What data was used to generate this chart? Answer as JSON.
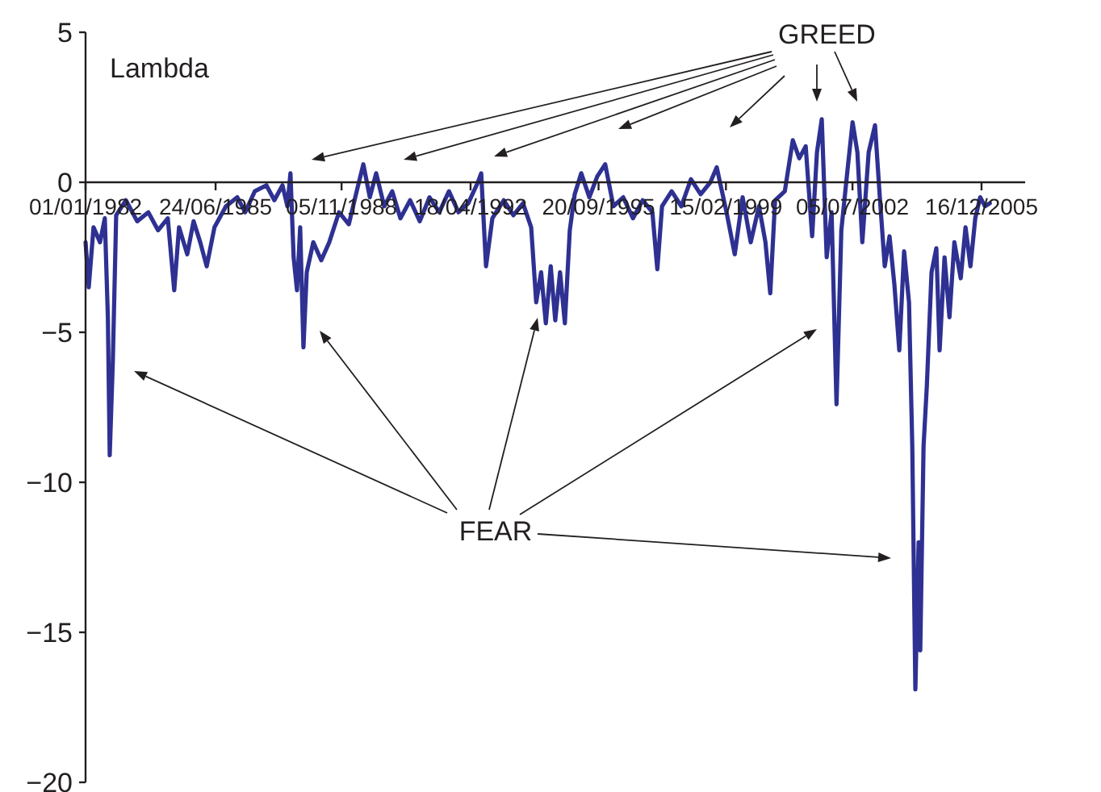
{
  "chart_data": {
    "type": "line",
    "ylabel": "Lambda",
    "annotations": [
      "GREED",
      "FEAR"
    ],
    "color": "#2e3192",
    "grid": false,
    "marker": "none",
    "line_style": "solid",
    "xlim": [
      "1982-01-01",
      "2007-02-15"
    ],
    "xticks": [
      {
        "value": "1982-01-01",
        "label": "01/01/1982"
      },
      {
        "value": "1985-06-24",
        "label": "24/06/1985"
      },
      {
        "value": "1988-11-05",
        "label": "05/11/1988"
      },
      {
        "value": "1992-04-18",
        "label": "18/04/1992"
      },
      {
        "value": "1995-09-20",
        "label": "20/09/1995"
      },
      {
        "value": "1999-02-15",
        "label": "15/02/1999"
      },
      {
        "value": "2002-07-05",
        "label": "05/07/2002"
      },
      {
        "value": "2005-12-16",
        "label": "16/12/2005"
      }
    ],
    "ylim": [
      -20,
      5
    ],
    "yticks": [
      5,
      0,
      -5,
      -10,
      -15,
      -20
    ],
    "x": [
      "1982-01-01",
      "1982-02-01",
      "1982-03-20",
      "1982-05-22",
      "1982-07-08",
      "1982-08-07",
      "1982-08-25",
      "1982-09-24",
      "1982-10-27",
      "1983-01-30",
      "1983-05-20",
      "1983-09-06",
      "1983-12-10",
      "1984-03-14",
      "1984-05-16",
      "1984-07-02",
      "1984-09-20",
      "1984-11-21",
      "1985-01-25",
      "1985-03-29",
      "1985-06-13",
      "1985-10-03",
      "1986-01-22",
      "1986-04-09",
      "1986-07-12",
      "1986-11-02",
      "1987-01-19",
      "1987-04-08",
      "1987-05-26",
      "1987-06-25",
      "1987-07-26",
      "1987-08-28",
      "1987-09-28",
      "1987-10-30",
      "1987-12-01",
      "1988-02-03",
      "1988-04-21",
      "1988-07-08",
      "1988-10-11",
      "1989-01-15",
      "1989-04-02",
      "1989-06-06",
      "1989-08-08",
      "1989-10-09",
      "1989-12-27",
      "1990-03-15",
      "1990-06-03",
      "1990-09-06",
      "1990-12-09",
      "1991-03-14",
      "1991-06-17",
      "1991-09-20",
      "1991-12-22",
      "1992-03-26",
      "1992-06-29",
      "1992-07-31",
      "1992-09-16",
      "1992-11-17",
      "1993-03-08",
      "1993-06-10",
      "1993-09-12",
      "1993-12-01",
      "1994-01-19",
      "1994-03-08",
      "1994-04-23",
      "1994-06-10",
      "1994-07-24",
      "1994-09-09",
      "1994-10-26",
      "1994-12-13",
      "1995-01-30",
      "1995-04-04",
      "1995-06-22",
      "1995-09-08",
      "1995-11-24",
      "1996-02-12",
      "1996-05-18",
      "1996-08-21",
      "1996-11-24",
      "1997-02-27",
      "1997-04-16",
      "1997-06-01",
      "1997-09-03",
      "1997-12-06",
      "1998-03-10",
      "1998-06-13",
      "1998-09-16",
      "1998-11-17",
      "1999-02-21",
      "1999-05-12",
      "1999-07-28",
      "1999-10-15",
      "2000-01-04",
      "2000-03-07",
      "2000-04-23",
      "2000-06-09",
      "2000-09-12",
      "2000-11-29",
      "2001-01-31",
      "2001-04-04",
      "2001-06-06",
      "2001-07-23",
      "2001-09-08",
      "2001-10-26",
      "2001-12-13",
      "2002-01-30",
      "2002-03-18",
      "2002-05-20",
      "2002-07-06",
      "2002-08-22",
      "2002-10-09",
      "2002-12-10",
      "2003-02-10",
      "2003-03-29",
      "2003-05-16",
      "2003-07-02",
      "2003-08-18",
      "2003-10-05",
      "2003-11-21",
      "2004-01-08",
      "2004-02-09",
      "2004-03-10",
      "2004-04-11",
      "2004-04-27",
      "2004-05-29",
      "2004-06-30",
      "2004-08-15",
      "2004-10-01",
      "2004-11-02",
      "2004-12-20",
      "2005-02-06",
      "2005-03-26",
      "2005-05-27",
      "2005-07-13",
      "2005-08-30",
      "2005-10-16",
      "2005-12-03",
      "2006-01-19",
      "2006-03-07"
    ],
    "values": [
      -2.0,
      -3.5,
      -1.5,
      -2.0,
      -1.2,
      -4.5,
      -9.1,
      -6.0,
      -1.1,
      -0.6,
      -1.3,
      -1.0,
      -1.6,
      -1.2,
      -3.6,
      -1.5,
      -2.4,
      -1.3,
      -2.0,
      -2.8,
      -1.5,
      -0.8,
      -0.5,
      -1.0,
      -0.3,
      -0.1,
      -0.6,
      -0.1,
      -0.8,
      0.3,
      -2.5,
      -3.6,
      -1.5,
      -5.5,
      -3.0,
      -2.0,
      -2.6,
      -2.0,
      -1.0,
      -1.4,
      -0.3,
      0.6,
      -0.5,
      0.3,
      -0.8,
      -0.3,
      -1.2,
      -0.6,
      -1.3,
      -0.5,
      -1.0,
      -0.3,
      -1.0,
      -0.7,
      0.0,
      0.3,
      -2.8,
      -1.2,
      -0.6,
      -1.1,
      -0.7,
      -1.5,
      -4.0,
      -3.0,
      -4.7,
      -2.8,
      -4.6,
      -3.0,
      -4.7,
      -1.6,
      -0.4,
      0.3,
      -0.5,
      0.2,
      0.6,
      -0.8,
      -0.5,
      -1.2,
      -0.6,
      -1.0,
      -2.9,
      -0.8,
      -0.3,
      -0.8,
      0.1,
      -0.4,
      0.0,
      0.5,
      -1.0,
      -2.4,
      -0.5,
      -2.0,
      -0.8,
      -2.0,
      -3.7,
      -0.6,
      -0.3,
      1.4,
      0.8,
      1.2,
      -1.8,
      1.0,
      2.1,
      -2.5,
      -1.0,
      -7.4,
      -1.6,
      0.5,
      2.0,
      1.0,
      -2.0,
      1.0,
      1.9,
      -0.5,
      -2.8,
      -1.8,
      -3.4,
      -5.6,
      -2.3,
      -4.0,
      -8.8,
      -16.9,
      -12.0,
      -15.6,
      -8.8,
      -6.8,
      -3.0,
      -2.2,
      -5.6,
      -2.5,
      -4.5,
      -2.0,
      -3.2,
      -1.5,
      -2.8,
      -1.2,
      -0.5,
      -0.8,
      -0.7
    ]
  }
}
